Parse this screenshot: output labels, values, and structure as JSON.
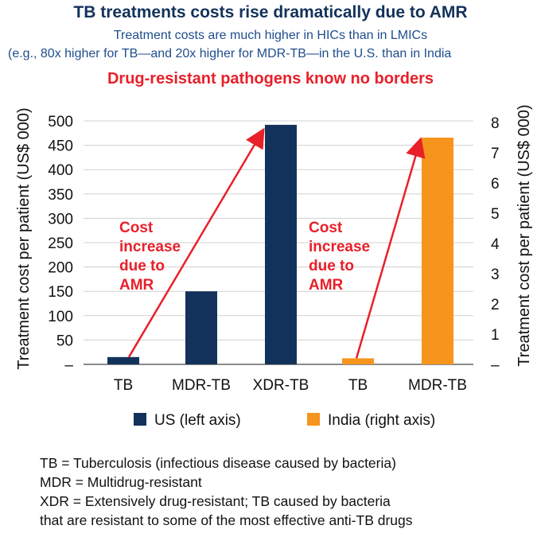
{
  "header": {
    "title": "TB treatments costs rise dramatically due to AMR",
    "subtitle_line1": "Treatment costs are much higher in HICs than in LMICs",
    "subtitle_line2": "(e.g., 80x higher for TB—and 20x higher for MDR-TB—in the U.S. than in India",
    "headline": "Drug-resistant pathogens know no borders"
  },
  "colors": {
    "us": "#13325b",
    "india": "#f7941d",
    "annotation": "#e8202a"
  },
  "chart_data": {
    "type": "bar",
    "categories": [
      "TB",
      "MDR-TB",
      "XDR-TB",
      "TB",
      "MDR-TB"
    ],
    "series": [
      {
        "name": "US (left axis)",
        "axis": "left",
        "values": [
          15,
          150,
          492,
          null,
          null
        ]
      },
      {
        "name": "India (right axis)",
        "axis": "right",
        "values": [
          null,
          null,
          null,
          0.2,
          7.5
        ]
      }
    ],
    "ylabel_left": "Treatment cost per patient (US$ 000)",
    "ylabel_right": "Treatment cost per patient (US$ 000)",
    "ylim_left": [
      0,
      500
    ],
    "ylim_right": [
      0,
      8
    ],
    "yticks_left": [
      "–",
      "50",
      "100",
      "150",
      "200",
      "250",
      "300",
      "350",
      "400",
      "450",
      "500"
    ],
    "yticks_right": [
      "–",
      "1",
      "2",
      "3",
      "4",
      "5",
      "6",
      "7",
      "8"
    ],
    "annotations": [
      {
        "lines": [
          "Cost",
          "increase",
          "due to",
          "AMR"
        ],
        "from": "US TB",
        "to": "US XDR-TB"
      },
      {
        "lines": [
          "Cost",
          "increase",
          "due to",
          "AMR"
        ],
        "from": "India TB",
        "to": "India MDR-TB"
      }
    ],
    "legend": [
      "US (left axis)",
      "India (right axis)"
    ],
    "legend_position": "bottom",
    "grid": true
  },
  "footnotes": [
    "TB = Tuberculosis (infectious disease caused by bacteria)",
    "MDR = Multidrug-resistant",
    "XDR = Extensively drug-resistant; TB caused by bacteria",
    "that are resistant to some of the most effective anti-TB drugs"
  ]
}
